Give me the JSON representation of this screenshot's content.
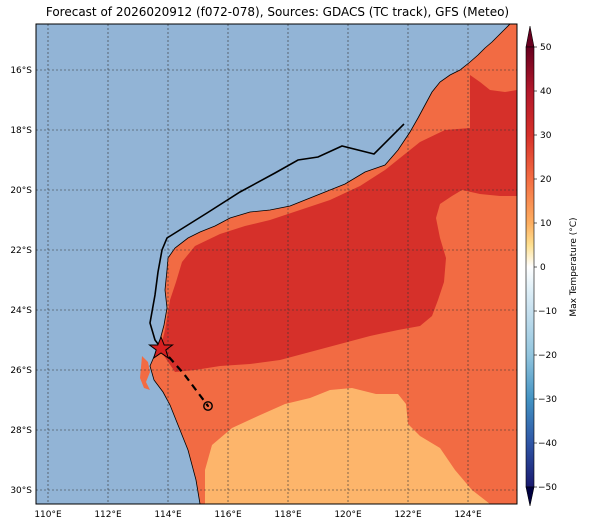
{
  "title": "Forecast of 2026020912 (f072-078), Sources: GDACS (TC track), GFS (Meteo)",
  "lon_ticks": [
    "110°E",
    "112°E",
    "114°E",
    "116°E",
    "118°E",
    "120°E",
    "122°E",
    "124°E"
  ],
  "lat_ticks": [
    "16°S",
    "18°S",
    "20°S",
    "22°S",
    "24°S",
    "26°S",
    "28°S",
    "30°S"
  ],
  "colorbar": {
    "label": "Max Temperature (°C)",
    "ticks": [
      "50",
      "40",
      "30",
      "20",
      "10",
      "0",
      "−10",
      "−20",
      "−30",
      "−40",
      "−50"
    ],
    "colors": [
      "#67001f",
      "#b2182b",
      "#d6332a",
      "#f46d43",
      "#fdae61",
      "#fee090",
      "#ffffff",
      "#c6e0ef",
      "#92c5de",
      "#4393c3",
      "#2166ac",
      "#3a3a9c",
      "#1a1a70"
    ]
  },
  "colors": {
    "ocean": "#92b4d6",
    "land_warm": "#f26b43",
    "land_hot": "#d6302a",
    "land_mild": "#fdb56b",
    "track": "#000000"
  },
  "icons": {
    "current_position": "red-star-marker",
    "forecast_end": "circle-marker"
  }
}
